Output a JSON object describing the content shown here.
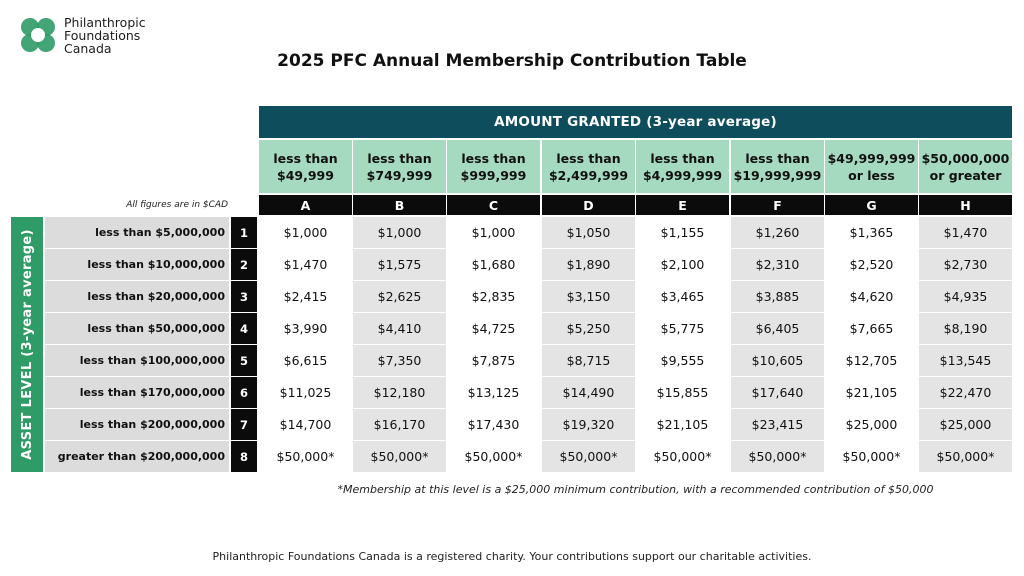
{
  "logo": {
    "line1": "Philanthropic",
    "line2": "Foundations",
    "line3": "Canada"
  },
  "title": "2025 PFC Annual Membership Contribution Table",
  "amount_header": "AMOUNT GRANTED (3-year average)",
  "asset_header": "ASSET LEVEL (3-year average)",
  "currency_note": "All figures are in $CAD",
  "columns": [
    {
      "line1": "less than",
      "line2": "$49,999",
      "letter": "A"
    },
    {
      "line1": "less than",
      "line2": "$749,999",
      "letter": "B"
    },
    {
      "line1": "less than",
      "line2": "$999,999",
      "letter": "C"
    },
    {
      "line1": "less than",
      "line2": "$2,499,999",
      "letter": "D"
    },
    {
      "line1": "less than",
      "line2": "$4,999,999",
      "letter": "E"
    },
    {
      "line1": "less than",
      "line2": "$19,999,999",
      "letter": "F"
    },
    {
      "line1": "$49,999,999",
      "line2": "or less",
      "letter": "G"
    },
    {
      "line1": "$50,000,000",
      "line2": "or greater",
      "letter": "H"
    }
  ],
  "rows": [
    {
      "label": "less than $5,000,000",
      "num": "1",
      "values": [
        "$1,000",
        "$1,000",
        "$1,000",
        "$1,050",
        "$1,155",
        "$1,260",
        "$1,365",
        "$1,470"
      ]
    },
    {
      "label": "less than $10,000,000",
      "num": "2",
      "values": [
        "$1,470",
        "$1,575",
        "$1,680",
        "$1,890",
        "$2,100",
        "$2,310",
        "$2,520",
        "$2,730"
      ]
    },
    {
      "label": "less than $20,000,000",
      "num": "3",
      "values": [
        "$2,415",
        "$2,625",
        "$2,835",
        "$3,150",
        "$3,465",
        "$3,885",
        "$4,620",
        "$4,935"
      ]
    },
    {
      "label": "less than $50,000,000",
      "num": "4",
      "values": [
        "$3,990",
        "$4,410",
        "$4,725",
        "$5,250",
        "$5,775",
        "$6,405",
        "$7,665",
        "$8,190"
      ]
    },
    {
      "label": "less than $100,000,000",
      "num": "5",
      "values": [
        "$6,615",
        "$7,350",
        "$7,875",
        "$8,715",
        "$9,555",
        "$10,605",
        "$12,705",
        "$13,545"
      ]
    },
    {
      "label": "less than $170,000,000",
      "num": "6",
      "values": [
        "$11,025",
        "$12,180",
        "$13,125",
        "$14,490",
        "$15,855",
        "$17,640",
        "$21,105",
        "$22,470"
      ]
    },
    {
      "label": "less than $200,000,000",
      "num": "7",
      "values": [
        "$14,700",
        "$16,170",
        "$17,430",
        "$19,320",
        "$21,105",
        "$23,415",
        "$25,000",
        "$25,000"
      ]
    },
    {
      "label": "greater than $200,000,000",
      "num": "8",
      "values": [
        "$50,000*",
        "$50,000*",
        "$50,000*",
        "$50,000*",
        "$50,000*",
        "$50,000*",
        "$50,000*",
        "$50,000*"
      ]
    }
  ],
  "footnote": "*Membership at this level is a $25,000 minimum contribution, with a recommended contribution of $50,000",
  "footer": "Philanthropic Foundations Canada is a registered charity. Your contributions support our charitable activities.",
  "colors": {
    "teal_header": "#0e4d5c",
    "mint_header": "#a5d9c0",
    "green_side": "#2f9b66"
  }
}
